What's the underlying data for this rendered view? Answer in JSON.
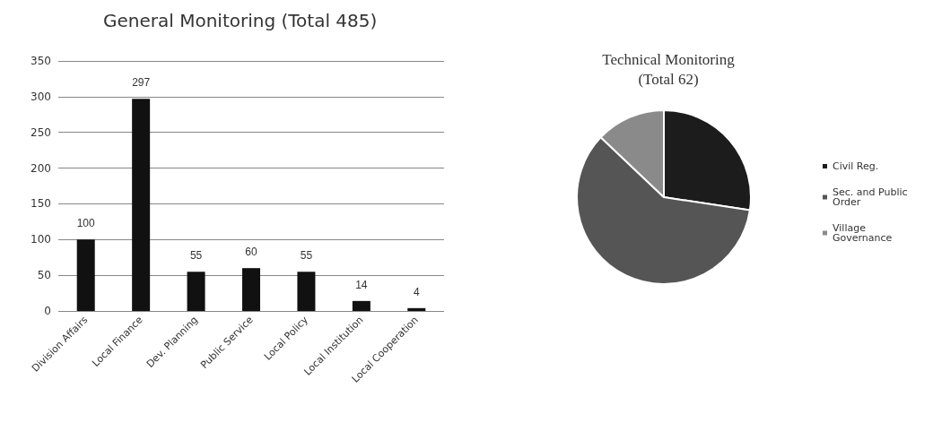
{
  "chart_data": [
    {
      "type": "bar",
      "title": "General Monitoring (Total 485)",
      "categories": [
        "Division Affairs",
        "Local Finance",
        "Dev. Planning",
        "Public Service",
        "Local Policy",
        "Local Institution",
        "Local Cooperation"
      ],
      "values": [
        100,
        297,
        55,
        60,
        55,
        14,
        4
      ],
      "color": "#111111",
      "ylim": [
        0,
        350
      ],
      "yticks": [
        0,
        50,
        100,
        150,
        200,
        250,
        300,
        350
      ],
      "grid": "y",
      "data_labels": true
    },
    {
      "type": "pie",
      "title": "Technical Monitoring\n(Total 62)",
      "categories": [
        "Civil Reg.",
        "Sec. and Public Order",
        "Village Governance"
      ],
      "values": [
        27.4,
        59.7,
        12.9
      ],
      "colors": [
        "#1c1c1c",
        "#555555",
        "#8a8a8a"
      ],
      "legend": "right"
    }
  ]
}
